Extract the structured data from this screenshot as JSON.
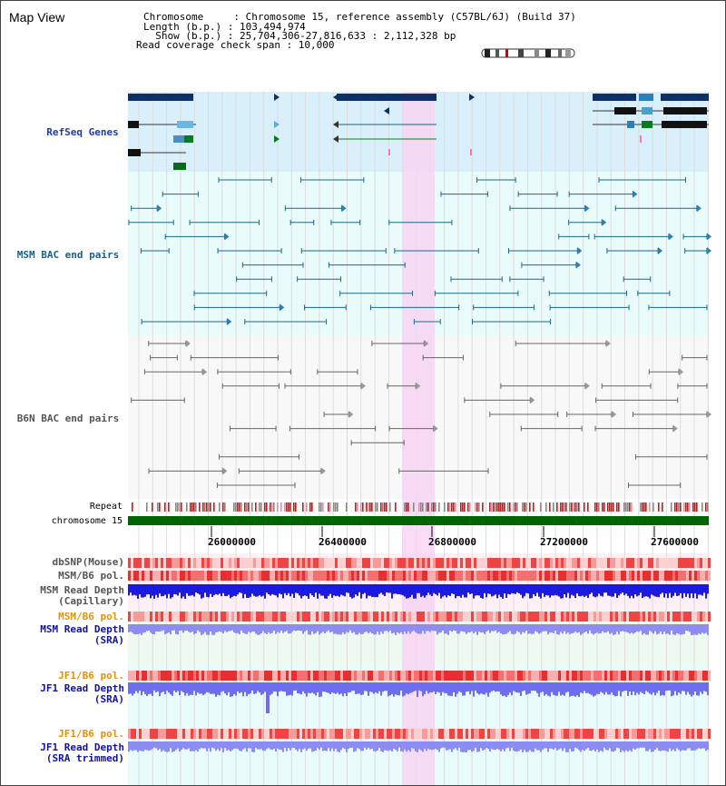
{
  "title": "Map View",
  "info": {
    "chromosome": "Chromosome     : Chromosome 15, reference assembly (C57BL/6J) (Build 37)",
    "length": "Length (b.p.) : 103,494,974",
    "show": "  Show (b.p.) : 25,704,306-27,816,633 : 2,112,328 bp",
    "coverage": "Read coverage check span : 10,000"
  },
  "tracks": {
    "refseq": "RefSeq Genes",
    "msm_bac": "MSM BAC end pairs",
    "b6n_bac": "B6N BAC end pairs",
    "repeat": "Repeat",
    "chromosome": "chromosome 15",
    "dbsnp": "dbSNP(Mouse)",
    "msm_b6_pol_1": "MSM/B6 pol.",
    "msm_depth_cap": "MSM Read Depth\n(Capillary)",
    "msm_b6_pol_2": "MSM/B6 pol.",
    "msm_depth_sra": "MSM Read Depth\n(SRA)",
    "jf1_b6_pol_1": "JF1/B6 pol.",
    "jf1_depth_sra": "JF1 Read Depth\n(SRA)",
    "jf1_b6_pol_2": "JF1/B6 pol.",
    "jf1_depth_trim": "JF1 Read Depth\n(SRA trimmed)"
  },
  "axis": {
    "ticks": [
      "26000000",
      "26400000",
      "26800000",
      "27200000",
      "27600000"
    ]
  },
  "colors": {
    "refseq_label": "#1a3da8",
    "msm_label": "#1a5f8a",
    "b6n_label": "#555555",
    "pol_label": "#e8910a",
    "depth_label": "#1212a0",
    "highlight": "#f7d5f2",
    "chromosome": "#006400"
  }
}
